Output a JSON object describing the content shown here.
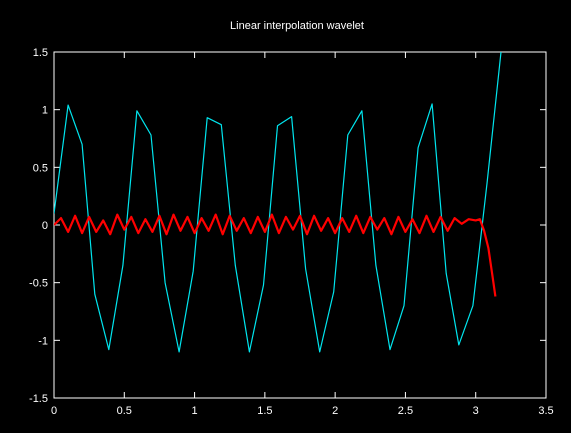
{
  "chart_data": {
    "type": "line",
    "title": "Linear interpolation wavelet",
    "xlabel": "",
    "ylabel": "",
    "xlim": [
      0,
      3.5
    ],
    "ylim": [
      -1.5,
      1.5
    ],
    "xticks": [
      "0",
      "0.5",
      "1",
      "1.5",
      "2",
      "2.5",
      "3",
      "3.5"
    ],
    "yticks": [
      "1.5",
      "1",
      "0.5",
      "0",
      "-0.5",
      "-1",
      "-1.5"
    ],
    "grid": false,
    "legend": "none",
    "background": "#000000",
    "axis_color": "#ffffff",
    "series": [
      {
        "color": "#00e5ee",
        "x": [
          0.0,
          0.1,
          0.2,
          0.29,
          0.39,
          0.49,
          0.59,
          0.69,
          0.79,
          0.89,
          0.99,
          1.09,
          1.19,
          1.29,
          1.39,
          1.49,
          1.59,
          1.69,
          1.79,
          1.89,
          1.99,
          2.09,
          2.19,
          2.29,
          2.39,
          2.49,
          2.59,
          2.69,
          2.79,
          2.88,
          2.98,
          3.08,
          3.18
        ],
        "y": [
          0.1,
          1.04,
          0.7,
          -0.6,
          -1.08,
          -0.35,
          0.99,
          0.78,
          -0.5,
          -1.1,
          -0.4,
          0.93,
          0.87,
          -0.35,
          -1.1,
          -0.52,
          0.86,
          0.94,
          -0.38,
          -1.1,
          -0.58,
          0.78,
          0.99,
          -0.35,
          -1.08,
          -0.7,
          0.67,
          1.05,
          -0.42,
          -1.04,
          -0.7,
          0.36,
          1.5
        ]
      },
      {
        "color": "#ff0000",
        "x": [
          0.0,
          0.05,
          0.1,
          0.15,
          0.2,
          0.25,
          0.3,
          0.35,
          0.4,
          0.45,
          0.5,
          0.55,
          0.6,
          0.65,
          0.7,
          0.75,
          0.8,
          0.85,
          0.9,
          0.95,
          1.0,
          1.05,
          1.1,
          1.15,
          1.2,
          1.25,
          1.3,
          1.35,
          1.4,
          1.45,
          1.5,
          1.55,
          1.6,
          1.65,
          1.7,
          1.75,
          1.8,
          1.85,
          1.9,
          1.95,
          2.0,
          2.05,
          2.1,
          2.15,
          2.2,
          2.25,
          2.3,
          2.35,
          2.4,
          2.45,
          2.5,
          2.55,
          2.6,
          2.65,
          2.7,
          2.75,
          2.8,
          2.85,
          2.9,
          2.95,
          3.0,
          3.03,
          3.06,
          3.09,
          3.12,
          3.14
        ],
        "y": [
          0.0,
          0.06,
          -0.06,
          0.08,
          -0.07,
          0.07,
          -0.06,
          0.04,
          -0.08,
          0.09,
          -0.04,
          0.07,
          -0.07,
          0.05,
          -0.06,
          0.08,
          -0.08,
          0.09,
          -0.05,
          0.07,
          -0.07,
          0.06,
          -0.05,
          0.09,
          -0.08,
          0.08,
          -0.05,
          0.06,
          -0.07,
          0.07,
          -0.06,
          0.09,
          -0.07,
          0.07,
          -0.04,
          0.08,
          -0.08,
          0.08,
          -0.05,
          0.06,
          -0.07,
          0.06,
          -0.06,
          0.08,
          -0.07,
          0.07,
          -0.04,
          0.06,
          -0.08,
          0.07,
          -0.06,
          0.05,
          -0.07,
          0.08,
          -0.06,
          0.07,
          -0.05,
          0.06,
          0.01,
          0.05,
          0.04,
          0.05,
          -0.05,
          -0.2,
          -0.45,
          -0.62
        ]
      }
    ]
  }
}
